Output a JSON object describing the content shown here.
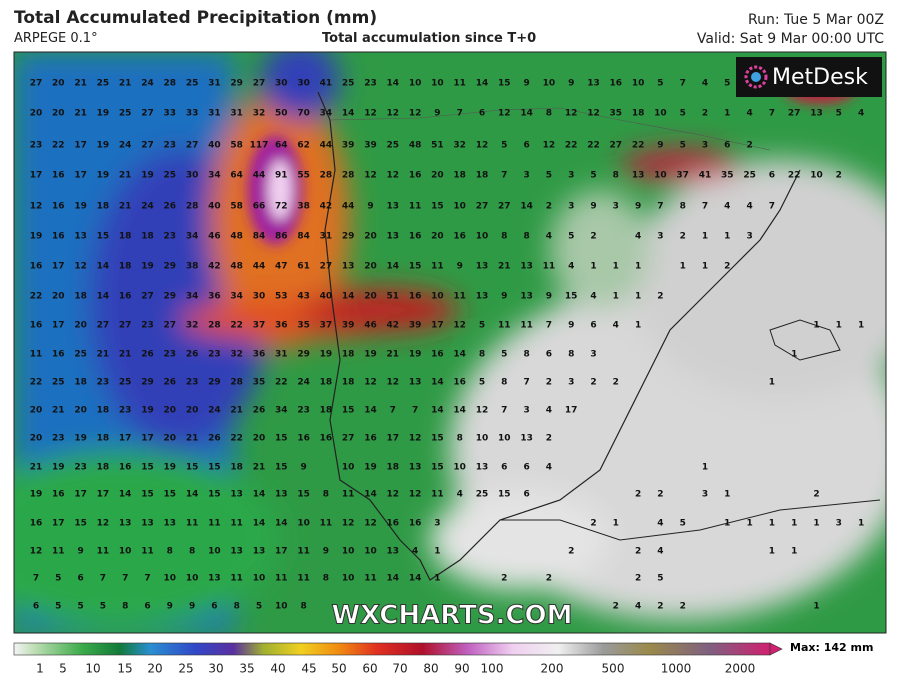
{
  "header": {
    "title": "Total Accumulated Precipitation (mm)",
    "model": "ARPEGE 0.1°",
    "subtitle": "Total accumulation since T+0",
    "run": "Run: Tue 5 Mar 00Z",
    "valid": "Valid: Sat 9 Mar 00:00 UTC"
  },
  "logo": "MetDesk",
  "watermark": "WXCHARTS.COM",
  "grid_values": [
    [
      27,
      20,
      21,
      25,
      21,
      24,
      28,
      25,
      31,
      29,
      27,
      30,
      30,
      41,
      25,
      23,
      14,
      10,
      10,
      11,
      14,
      15,
      9,
      10,
      9,
      13,
      16,
      10,
      5,
      7,
      4,
      5,
      null,
      null,
      null,
      null,
      null,
      null
    ],
    [
      20,
      20,
      21,
      19,
      25,
      27,
      33,
      33,
      31,
      31,
      32,
      50,
      70,
      34,
      14,
      12,
      12,
      12,
      9,
      7,
      6,
      12,
      14,
      8,
      12,
      12,
      35,
      18,
      10,
      5,
      2,
      1,
      4,
      7,
      27,
      13,
      5,
      4
    ],
    [
      23,
      22,
      17,
      19,
      24,
      27,
      23,
      27,
      40,
      58,
      117,
      64,
      62,
      44,
      39,
      39,
      25,
      48,
      51,
      32,
      12,
      5,
      6,
      12,
      22,
      22,
      27,
      22,
      9,
      5,
      3,
      6,
      2,
      null,
      null,
      null,
      null,
      null
    ],
    [
      17,
      16,
      17,
      19,
      21,
      19,
      25,
      30,
      34,
      64,
      44,
      91,
      55,
      28,
      28,
      12,
      12,
      16,
      20,
      18,
      18,
      7,
      3,
      5,
      3,
      5,
      8,
      13,
      10,
      37,
      41,
      35,
      25,
      6,
      22,
      10,
      2,
      null
    ],
    [
      12,
      16,
      19,
      18,
      21,
      24,
      26,
      28,
      40,
      58,
      66,
      72,
      38,
      42,
      44,
      9,
      13,
      11,
      15,
      10,
      27,
      27,
      14,
      2,
      3,
      9,
      3,
      9,
      7,
      8,
      7,
      4,
      4,
      7,
      null,
      null,
      null,
      null
    ],
    [
      19,
      16,
      13,
      15,
      18,
      18,
      23,
      34,
      46,
      48,
      84,
      86,
      84,
      31,
      29,
      20,
      13,
      16,
      20,
      16,
      10,
      8,
      8,
      4,
      5,
      2,
      null,
      4,
      3,
      2,
      1,
      1,
      3,
      null,
      null,
      null,
      null,
      null
    ],
    [
      16,
      17,
      12,
      14,
      18,
      19,
      29,
      38,
      42,
      48,
      44,
      47,
      61,
      27,
      13,
      20,
      14,
      15,
      11,
      9,
      13,
      21,
      13,
      11,
      4,
      1,
      1,
      1,
      null,
      1,
      1,
      2,
      null,
      null,
      null,
      null,
      null,
      null
    ],
    [
      22,
      20,
      18,
      14,
      16,
      27,
      29,
      34,
      36,
      34,
      30,
      53,
      43,
      40,
      14,
      20,
      51,
      16,
      10,
      11,
      13,
      9,
      13,
      9,
      15,
      4,
      1,
      1,
      2,
      null,
      null,
      null,
      null,
      null,
      null,
      null,
      null,
      null
    ],
    [
      16,
      17,
      20,
      27,
      27,
      23,
      27,
      32,
      28,
      22,
      37,
      36,
      35,
      37,
      39,
      46,
      42,
      39,
      17,
      12,
      5,
      11,
      11,
      7,
      9,
      6,
      4,
      1,
      null,
      null,
      null,
      null,
      null,
      null,
      null,
      1,
      1,
      1
    ],
    [
      11,
      16,
      25,
      21,
      21,
      26,
      23,
      26,
      23,
      32,
      36,
      31,
      29,
      19,
      18,
      19,
      21,
      19,
      16,
      14,
      8,
      5,
      8,
      6,
      8,
      3,
      null,
      null,
      null,
      null,
      null,
      null,
      null,
      null,
      1,
      null,
      null,
      null
    ],
    [
      22,
      25,
      18,
      23,
      25,
      29,
      26,
      23,
      29,
      28,
      35,
      22,
      24,
      18,
      18,
      12,
      12,
      13,
      14,
      16,
      5,
      8,
      7,
      2,
      3,
      2,
      2,
      null,
      null,
      null,
      null,
      null,
      null,
      1,
      null,
      null,
      null,
      null
    ],
    [
      20,
      21,
      20,
      18,
      23,
      19,
      20,
      20,
      24,
      21,
      26,
      34,
      23,
      18,
      15,
      14,
      7,
      7,
      14,
      14,
      12,
      7,
      3,
      4,
      17,
      null,
      null,
      null,
      null,
      null,
      null,
      null,
      null,
      null,
      null,
      null,
      null,
      null
    ],
    [
      20,
      23,
      19,
      18,
      17,
      17,
      20,
      21,
      26,
      22,
      20,
      15,
      16,
      16,
      27,
      16,
      17,
      12,
      15,
      8,
      10,
      10,
      13,
      2,
      null,
      null,
      null,
      null,
      null,
      null,
      null,
      null,
      null,
      null,
      null,
      null,
      null,
      null
    ],
    [
      21,
      19,
      23,
      18,
      16,
      15,
      19,
      15,
      15,
      18,
      21,
      15,
      9,
      null,
      10,
      19,
      18,
      13,
      15,
      10,
      13,
      6,
      6,
      4,
      null,
      null,
      null,
      null,
      null,
      null,
      1,
      null,
      null,
      null,
      null,
      null,
      null,
      null
    ],
    [
      19,
      16,
      17,
      17,
      14,
      15,
      15,
      14,
      15,
      13,
      14,
      13,
      15,
      8,
      11,
      14,
      12,
      12,
      11,
      4,
      25,
      15,
      6,
      null,
      null,
      null,
      null,
      2,
      2,
      null,
      3,
      1,
      null,
      null,
      null,
      2,
      null,
      null
    ],
    [
      16,
      17,
      15,
      12,
      13,
      13,
      13,
      11,
      11,
      11,
      14,
      14,
      10,
      11,
      12,
      12,
      16,
      16,
      3,
      null,
      null,
      null,
      null,
      null,
      null,
      2,
      1,
      null,
      4,
      5,
      null,
      1,
      1,
      1,
      1,
      1,
      3,
      1
    ],
    [
      12,
      11,
      9,
      11,
      10,
      11,
      8,
      8,
      10,
      13,
      13,
      17,
      11,
      9,
      10,
      10,
      13,
      4,
      1,
      null,
      null,
      null,
      null,
      null,
      2,
      null,
      null,
      2,
      4,
      null,
      null,
      null,
      null,
      1,
      1,
      null,
      null,
      null
    ],
    [
      7,
      5,
      6,
      7,
      7,
      7,
      10,
      10,
      13,
      11,
      10,
      11,
      11,
      8,
      10,
      11,
      14,
      14,
      1,
      null,
      null,
      2,
      null,
      2,
      null,
      null,
      null,
      2,
      5,
      null,
      null,
      null,
      null,
      null,
      null,
      null,
      null,
      null
    ],
    [
      6,
      5,
      5,
      5,
      8,
      6,
      9,
      9,
      6,
      8,
      5,
      10,
      8,
      null,
      null,
      null,
      null,
      null,
      null,
      null,
      null,
      null,
      null,
      null,
      null,
      null,
      2,
      4,
      2,
      2,
      null,
      null,
      null,
      null,
      null,
      1,
      null,
      null
    ]
  ],
  "colorbar": {
    "ticks": [
      1,
      5,
      10,
      15,
      20,
      25,
      30,
      35,
      40,
      45,
      50,
      60,
      70,
      80,
      90,
      100,
      200,
      500,
      1000,
      2000
    ],
    "max_label": "Max: 142 mm"
  }
}
